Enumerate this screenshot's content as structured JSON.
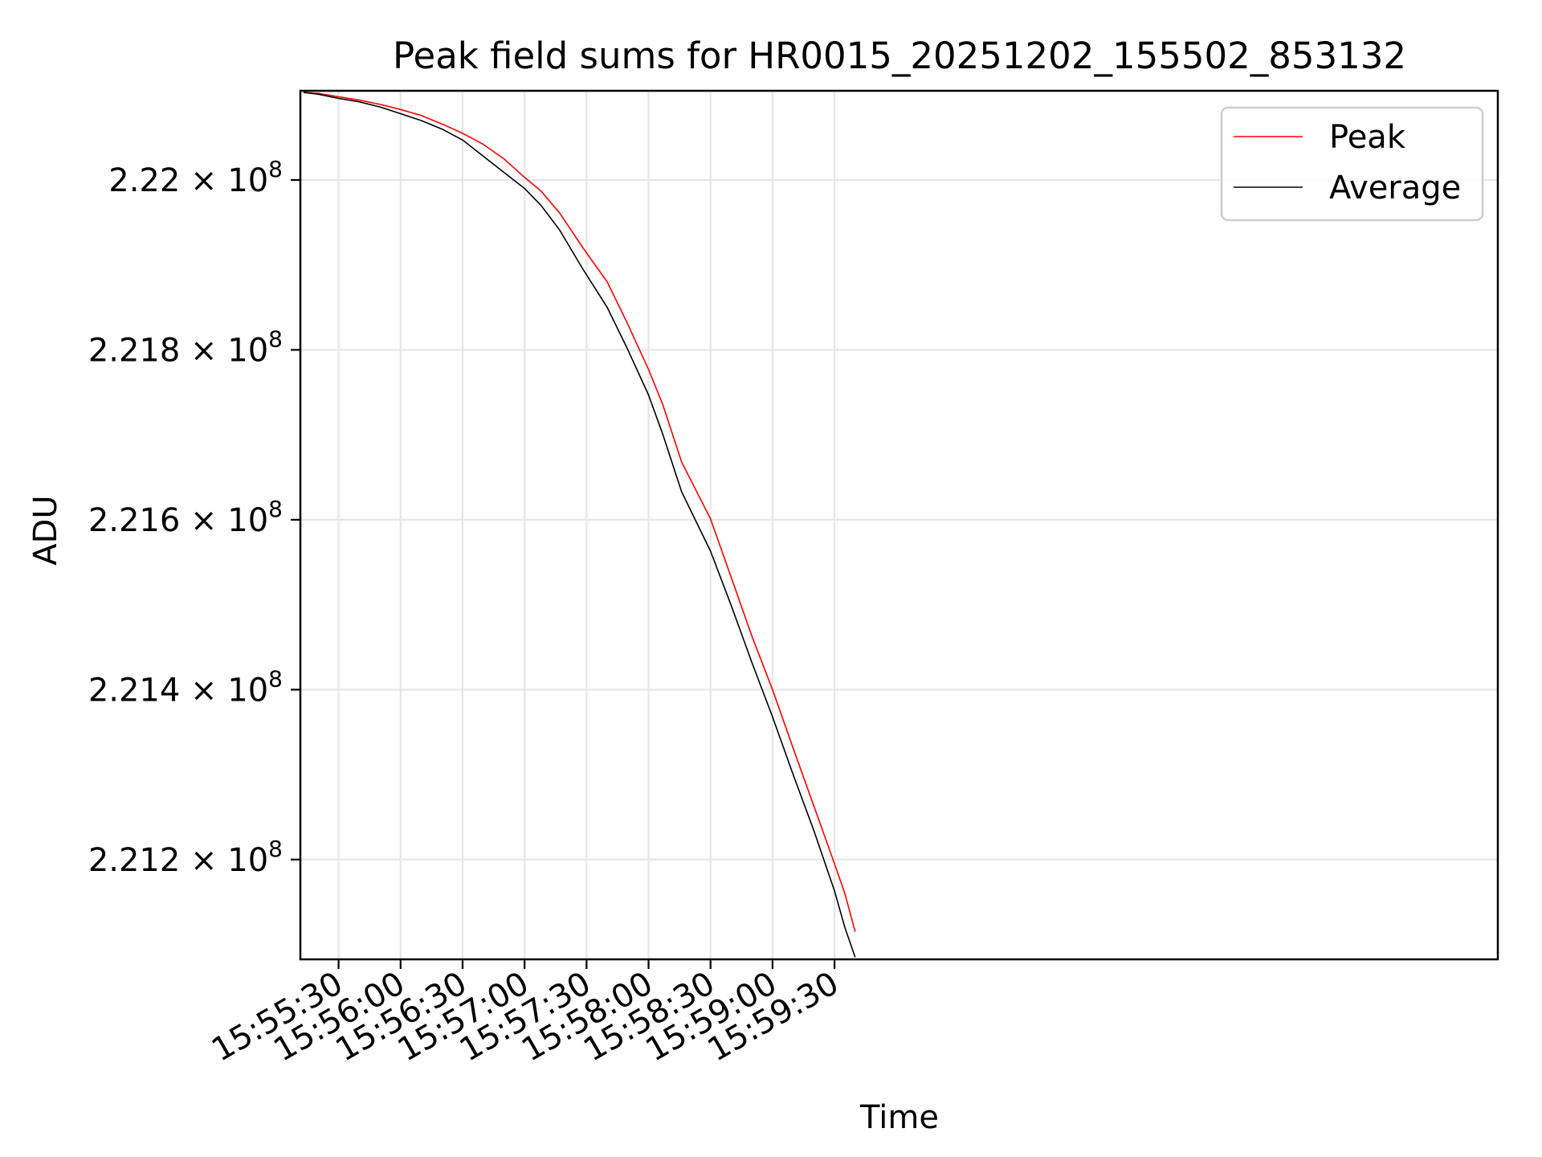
{
  "chart_data": {
    "type": "line",
    "title": "Peak field sums for HR0015_20251202_155502_853132",
    "xlabel": "Time",
    "ylabel": "ADU",
    "x_unit": "seconds since 15:55:00",
    "xlim": [
      11.5,
      591
    ],
    "ylim": [
      221.0825,
      222.105
    ],
    "y_scale_note": "values in units of 1e6 ADU",
    "grid": true,
    "legend_position": "top-right",
    "x_ticks": [
      {
        "value": 30,
        "label": "15:55:30"
      },
      {
        "value": 60,
        "label": "15:56:00"
      },
      {
        "value": 90,
        "label": "15:56:30"
      },
      {
        "value": 120,
        "label": "15:57:00"
      },
      {
        "value": 150,
        "label": "15:57:30"
      },
      {
        "value": 180,
        "label": "15:58:00"
      },
      {
        "value": 210,
        "label": "15:58:30"
      },
      {
        "value": 240,
        "label": "15:59:00"
      },
      {
        "value": 270,
        "label": "15:59:30"
      }
    ],
    "y_ticks": [
      {
        "value": 222.0,
        "mantissa": "2.22",
        "times": " × 10",
        "exp": "8"
      },
      {
        "value": 221.8,
        "mantissa": "2.218",
        "times": " × 10",
        "exp": "8"
      },
      {
        "value": 221.6,
        "mantissa": "2.216",
        "times": " × 10",
        "exp": "8"
      },
      {
        "value": 221.4,
        "mantissa": "2.214",
        "times": " × 10",
        "exp": "8"
      },
      {
        "value": 221.2,
        "mantissa": "2.212",
        "times": " × 10",
        "exp": "8"
      }
    ],
    "series": [
      {
        "name": "Peak",
        "color": "#ff0000",
        "x": [
          13,
          20,
          30,
          40,
          50,
          60,
          70,
          80,
          90,
          100,
          110,
          120,
          128,
          137,
          148,
          160,
          170,
          180,
          187,
          196,
          210,
          220,
          230,
          240,
          250,
          260,
          270,
          275,
          280
        ],
        "y": [
          222.103,
          222.102,
          222.098,
          222.094,
          222.089,
          222.083,
          222.076,
          222.066,
          222.055,
          222.042,
          222.025,
          222.003,
          221.987,
          221.961,
          221.921,
          221.88,
          221.83,
          221.777,
          221.735,
          221.668,
          221.601,
          221.532,
          221.463,
          221.4,
          221.331,
          221.263,
          221.195,
          221.16,
          221.115
        ]
      },
      {
        "name": "Average",
        "color": "#000000",
        "x": [
          13,
          20,
          30,
          40,
          50,
          60,
          70,
          80,
          90,
          100,
          110,
          120,
          128,
          137,
          148,
          160,
          170,
          180,
          187,
          196,
          210,
          220,
          230,
          240,
          250,
          260,
          270,
          275,
          280
        ],
        "y": [
          222.103,
          222.101,
          222.096,
          222.092,
          222.086,
          222.078,
          222.07,
          222.06,
          222.047,
          222.028,
          222.009,
          221.99,
          221.97,
          221.941,
          221.896,
          221.85,
          221.8,
          221.747,
          221.7,
          221.633,
          221.563,
          221.499,
          221.432,
          221.368,
          221.3,
          221.234,
          221.163,
          221.12,
          221.085
        ]
      }
    ]
  }
}
